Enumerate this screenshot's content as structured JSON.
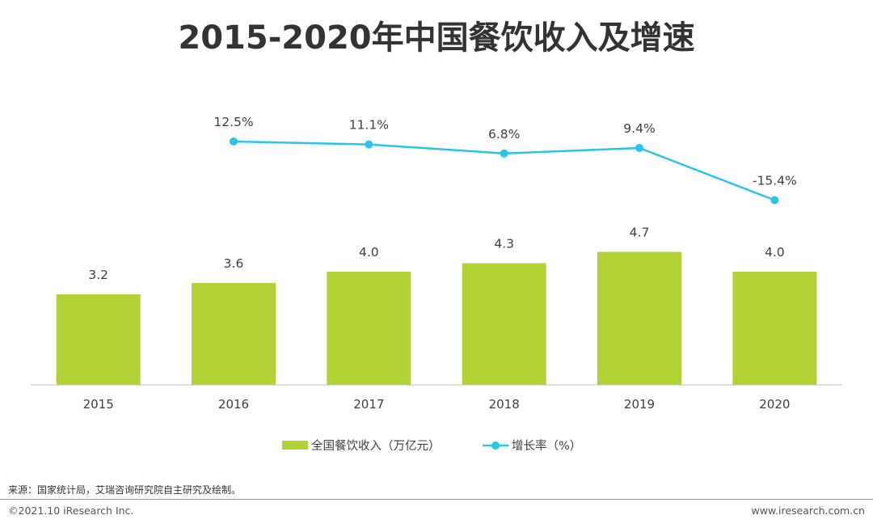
{
  "chart_data": {
    "type": "bar+line",
    "title": "2015-2020年中国餐饮收入及增速",
    "categories": [
      "2015",
      "2016",
      "2017",
      "2018",
      "2019",
      "2020"
    ],
    "bar_series": {
      "name": "全国餐饮收入（万亿元）",
      "values": [
        3.2,
        3.6,
        4.0,
        4.3,
        4.7,
        4.0
      ],
      "labels": [
        "3.2",
        "3.6",
        "4.0",
        "4.3",
        "4.7",
        "4.0"
      ],
      "color": "#b2d235"
    },
    "line_series": {
      "name": "增长率（%）",
      "values": [
        null,
        12.5,
        11.1,
        6.8,
        9.4,
        -15.4
      ],
      "labels": [
        "",
        "12.5%",
        "11.1%",
        "6.8%",
        "9.4%",
        "-15.4%"
      ],
      "color": "#29c4ea"
    },
    "legend_position": "bottom",
    "grid": false
  },
  "footer": {
    "source": "来源：国家统计局，艾瑞咨询研究院自主研究及绘制。",
    "copyright": "©2021.10 iResearch Inc.",
    "website": "www.iresearch.com.cn"
  }
}
